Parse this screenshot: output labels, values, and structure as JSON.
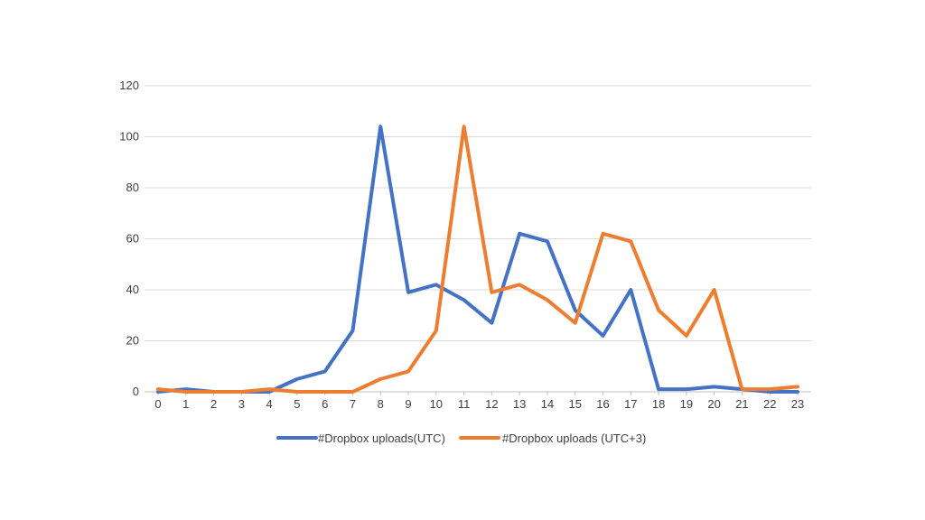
{
  "chart_data": {
    "type": "line",
    "x": [
      0,
      1,
      2,
      3,
      4,
      5,
      6,
      7,
      8,
      9,
      10,
      11,
      12,
      13,
      14,
      15,
      16,
      17,
      18,
      19,
      20,
      21,
      22,
      23
    ],
    "series": [
      {
        "name": "#Dropbox uploads(UTC)",
        "color": "#4472C4",
        "values": [
          0,
          1,
          0,
          0,
          0,
          5,
          8,
          24,
          104,
          39,
          42,
          36,
          27,
          62,
          59,
          32,
          22,
          40,
          1,
          1,
          2,
          1,
          0,
          0
        ]
      },
      {
        "name": "#Dropbox uploads (UTC+3)",
        "color": "#ED7D31",
        "values": [
          1,
          0,
          0,
          0,
          1,
          0,
          0,
          0,
          5,
          8,
          24,
          104,
          39,
          42,
          36,
          27,
          62,
          59,
          32,
          22,
          40,
          1,
          1,
          2
        ]
      }
    ],
    "yticks": [
      0,
      20,
      40,
      60,
      80,
      100,
      120
    ],
    "ylim": [
      0,
      120
    ],
    "xlim": [
      0,
      23
    ],
    "grid": "horizontal",
    "legend_position": "bottom",
    "title": "",
    "xlabel": "",
    "ylabel": ""
  }
}
